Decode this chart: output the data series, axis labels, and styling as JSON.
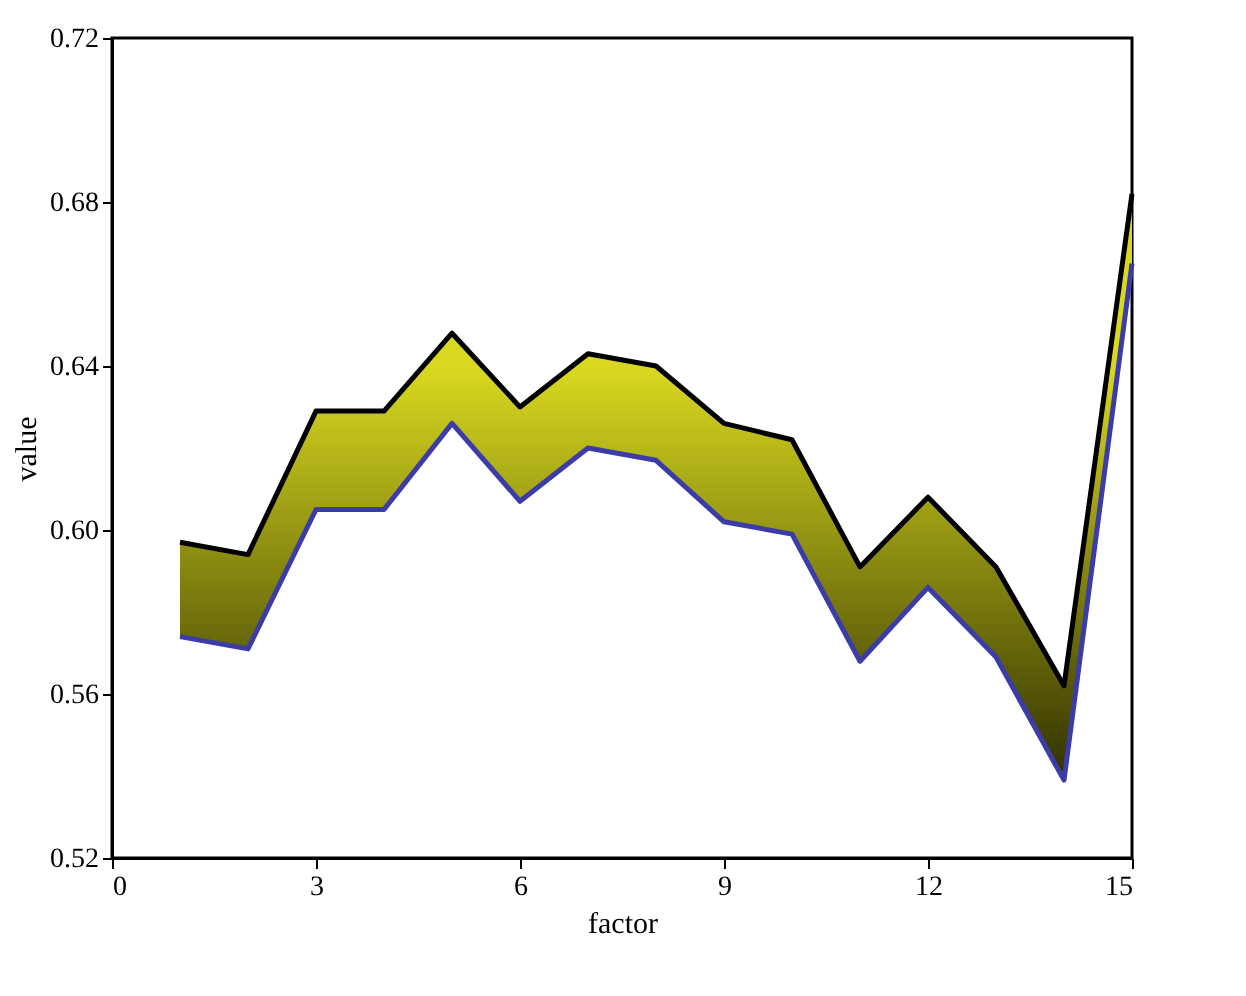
{
  "chart_data": {
    "type": "line",
    "xlabel": "factor",
    "ylabel": "value",
    "x": [
      1,
      2,
      3,
      4,
      5,
      6,
      7,
      8,
      9,
      10,
      11,
      12,
      13,
      14,
      15
    ],
    "color": "#d8d820",
    "series": [
      {
        "color": "#000000",
        "values": [
          0.597,
          0.594,
          0.629,
          0.629,
          0.648,
          0.63,
          0.643,
          0.64,
          0.626,
          0.622,
          0.591,
          0.608,
          0.591,
          0.562,
          0.682
        ],
        "lower": [
          0.574,
          0.571,
          0.605,
          0.605,
          0.626,
          0.607,
          0.62,
          0.617,
          0.602,
          0.599,
          0.568,
          0.586,
          0.569,
          0.539,
          0.665
        ],
        "upper": [
          0.597,
          0.594,
          0.629,
          0.629,
          0.648,
          0.63,
          0.643,
          0.64,
          0.626,
          0.622,
          0.591,
          0.608,
          0.591,
          0.562,
          0.682
        ]
      },
      {
        "color": "#3c3ca8",
        "values": [
          0.574,
          0.571,
          0.605,
          0.605,
          0.626,
          0.607,
          0.62,
          0.617,
          0.602,
          0.599,
          0.568,
          0.586,
          0.569,
          0.539,
          0.665
        ]
      }
    ],
    "xlim": [
      0,
      15
    ],
    "xticks": [
      0,
      3,
      6,
      9,
      12,
      15
    ],
    "ylim": [
      0.52,
      0.72
    ],
    "yticks": [
      0.52,
      0.56,
      {
        "value": 0.6,
        "label": "0.60"
      },
      0.64,
      0.68,
      0.72
    ],
    "grid": false
  }
}
